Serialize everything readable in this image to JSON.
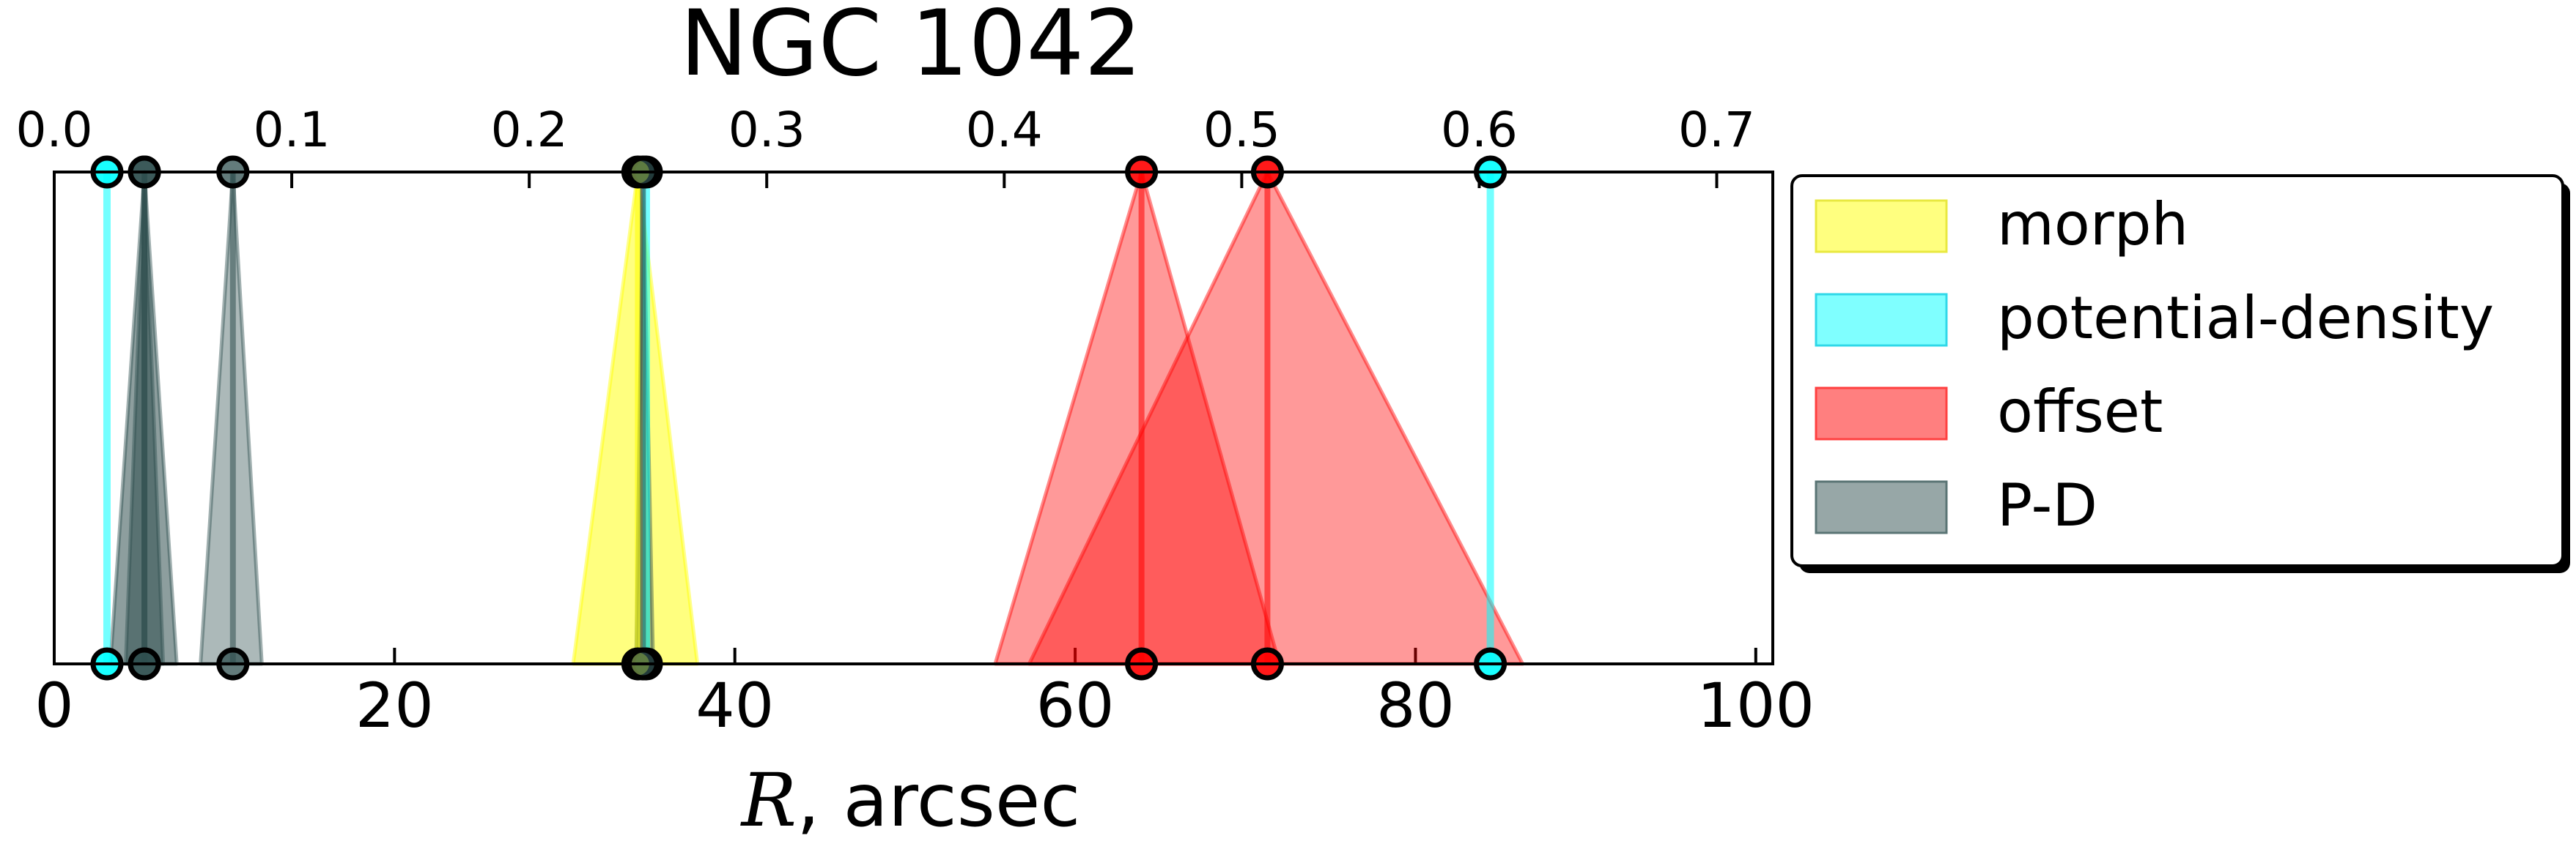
{
  "chart_data": {
    "type": "area",
    "title": "NGC 1042",
    "xlabel_italic": "R",
    "xlabel_rest": ", arcsec",
    "xlim": [
      0,
      101
    ],
    "xticks": [
      0,
      20,
      40,
      60,
      80,
      100
    ],
    "top_xlim": [
      0,
      0.7236
    ],
    "top_xticks": [
      "0.0",
      "0.1",
      "0.2",
      "0.3",
      "0.4",
      "0.5",
      "0.6",
      "0.7"
    ],
    "grid": false,
    "legend_position": "right, outside plot",
    "legend": [
      {
        "key": "morph",
        "label": "morph",
        "color": "#ffff00",
        "edge": "#e8e840"
      },
      {
        "key": "potential-density",
        "label": "potential-density",
        "color": "#00ffff",
        "edge": "#30d8e8"
      },
      {
        "key": "offset",
        "label": "offset",
        "color": "#ff0000",
        "edge": "#ff4040"
      },
      {
        "key": "P-D",
        "label": "P-D",
        "color": "#2f4f4f",
        "edge": "#5a7474"
      }
    ],
    "series": [
      {
        "group": "P-D",
        "center": 5.3,
        "left": 3.3,
        "right": 7.2,
        "opacity": 0.55
      },
      {
        "group": "P-D",
        "center": 5.3,
        "left": 4.2,
        "right": 6.4,
        "opacity": 0.55
      },
      {
        "group": "P-D",
        "center": 10.5,
        "left": 8.6,
        "right": 12.2,
        "opacity": 0.4
      },
      {
        "group": "morph",
        "center": 34.3,
        "left": 30.5,
        "right": 37.8,
        "opacity": 0.5
      },
      {
        "group": "P-D",
        "center": 34.6,
        "left": 34.2,
        "right": 35.2,
        "opacity": 0.4
      },
      {
        "group": "offset",
        "center": 63.9,
        "left": 55.3,
        "right": 72.0,
        "opacity": 0.4
      },
      {
        "group": "offset",
        "center": 71.3,
        "left": 57.3,
        "right": 86.3,
        "opacity": 0.4
      }
    ],
    "lines": [
      {
        "group": "potential-density",
        "x": 3.1
      },
      {
        "group": "potential-density",
        "x": 34.8
      },
      {
        "group": "potential-density",
        "x": 84.4
      }
    ]
  }
}
